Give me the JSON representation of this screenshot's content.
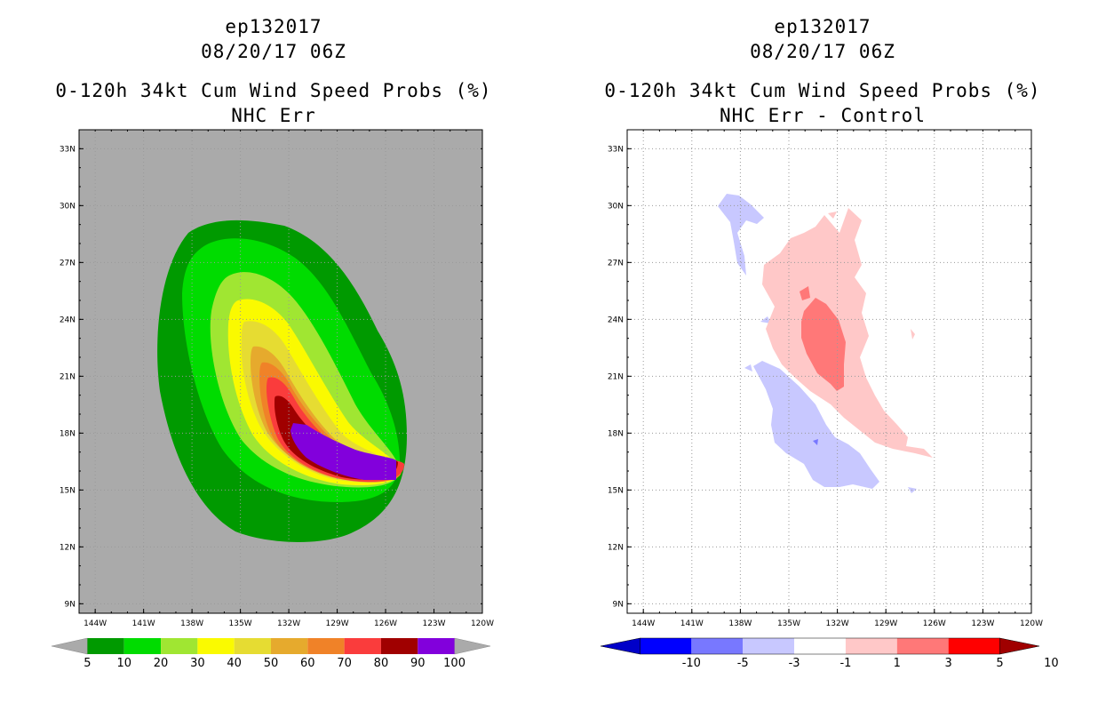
{
  "left": {
    "title_line1": "ep132017",
    "title_line2": "08/20/17 06Z",
    "title_line3": "0-120h 34kt Cum Wind Speed Probs (%)",
    "title_line4": "NHC Err"
  },
  "right": {
    "title_line1": "ep132017",
    "title_line2": "08/20/17 06Z",
    "title_line3": "0-120h 34kt Cum Wind Speed Probs (%)",
    "title_line4": "NHC Err - Control"
  },
  "chart_data": [
    {
      "type": "heatmap",
      "title": "0-120h 34kt Cum Wind Speed Probs (%)",
      "subtitle": "NHC Err",
      "x_ticks": [
        "144W",
        "141W",
        "138W",
        "135W",
        "132W",
        "129W",
        "126W",
        "123W",
        "120W"
      ],
      "y_ticks": [
        "9N",
        "12N",
        "15N",
        "18N",
        "21N",
        "24N",
        "27N",
        "30N",
        "33N"
      ],
      "xlim": [
        -145,
        -120
      ],
      "ylim": [
        8.5,
        34
      ],
      "colorbar_levels": [
        "5",
        "10",
        "20",
        "30",
        "40",
        "50",
        "60",
        "70",
        "80",
        "90",
        "100"
      ],
      "colorbar_colors": [
        "#009a00",
        "#00dc00",
        "#a0e632",
        "#fafa00",
        "#e6dc32",
        "#e6aa2d",
        "#f08228",
        "#fa3c3c",
        "#a00000",
        "#8200dc"
      ],
      "background_color": "#aaaaaa"
    },
    {
      "type": "heatmap",
      "title": "0-120h 34kt Cum Wind Speed Probs (%)",
      "subtitle": "NHC Err - Control",
      "x_ticks": [
        "144W",
        "141W",
        "138W",
        "135W",
        "132W",
        "129W",
        "126W",
        "123W",
        "120W"
      ],
      "y_ticks": [
        "9N",
        "12N",
        "15N",
        "18N",
        "21N",
        "24N",
        "27N",
        "30N",
        "33N"
      ],
      "xlim": [
        -145,
        -120
      ],
      "ylim": [
        8.5,
        34
      ],
      "colorbar_levels": [
        "-10",
        "-5",
        "-3",
        "-1",
        "1",
        "3",
        "5",
        "10"
      ],
      "colorbar_colors": [
        "#0000c8",
        "#0000ff",
        "#7878ff",
        "#c8c8ff",
        "#ffffff",
        "#ffc8c8",
        "#ff7878",
        "#ff0000",
        "#a00000"
      ],
      "background_color": "#ffffff"
    }
  ]
}
